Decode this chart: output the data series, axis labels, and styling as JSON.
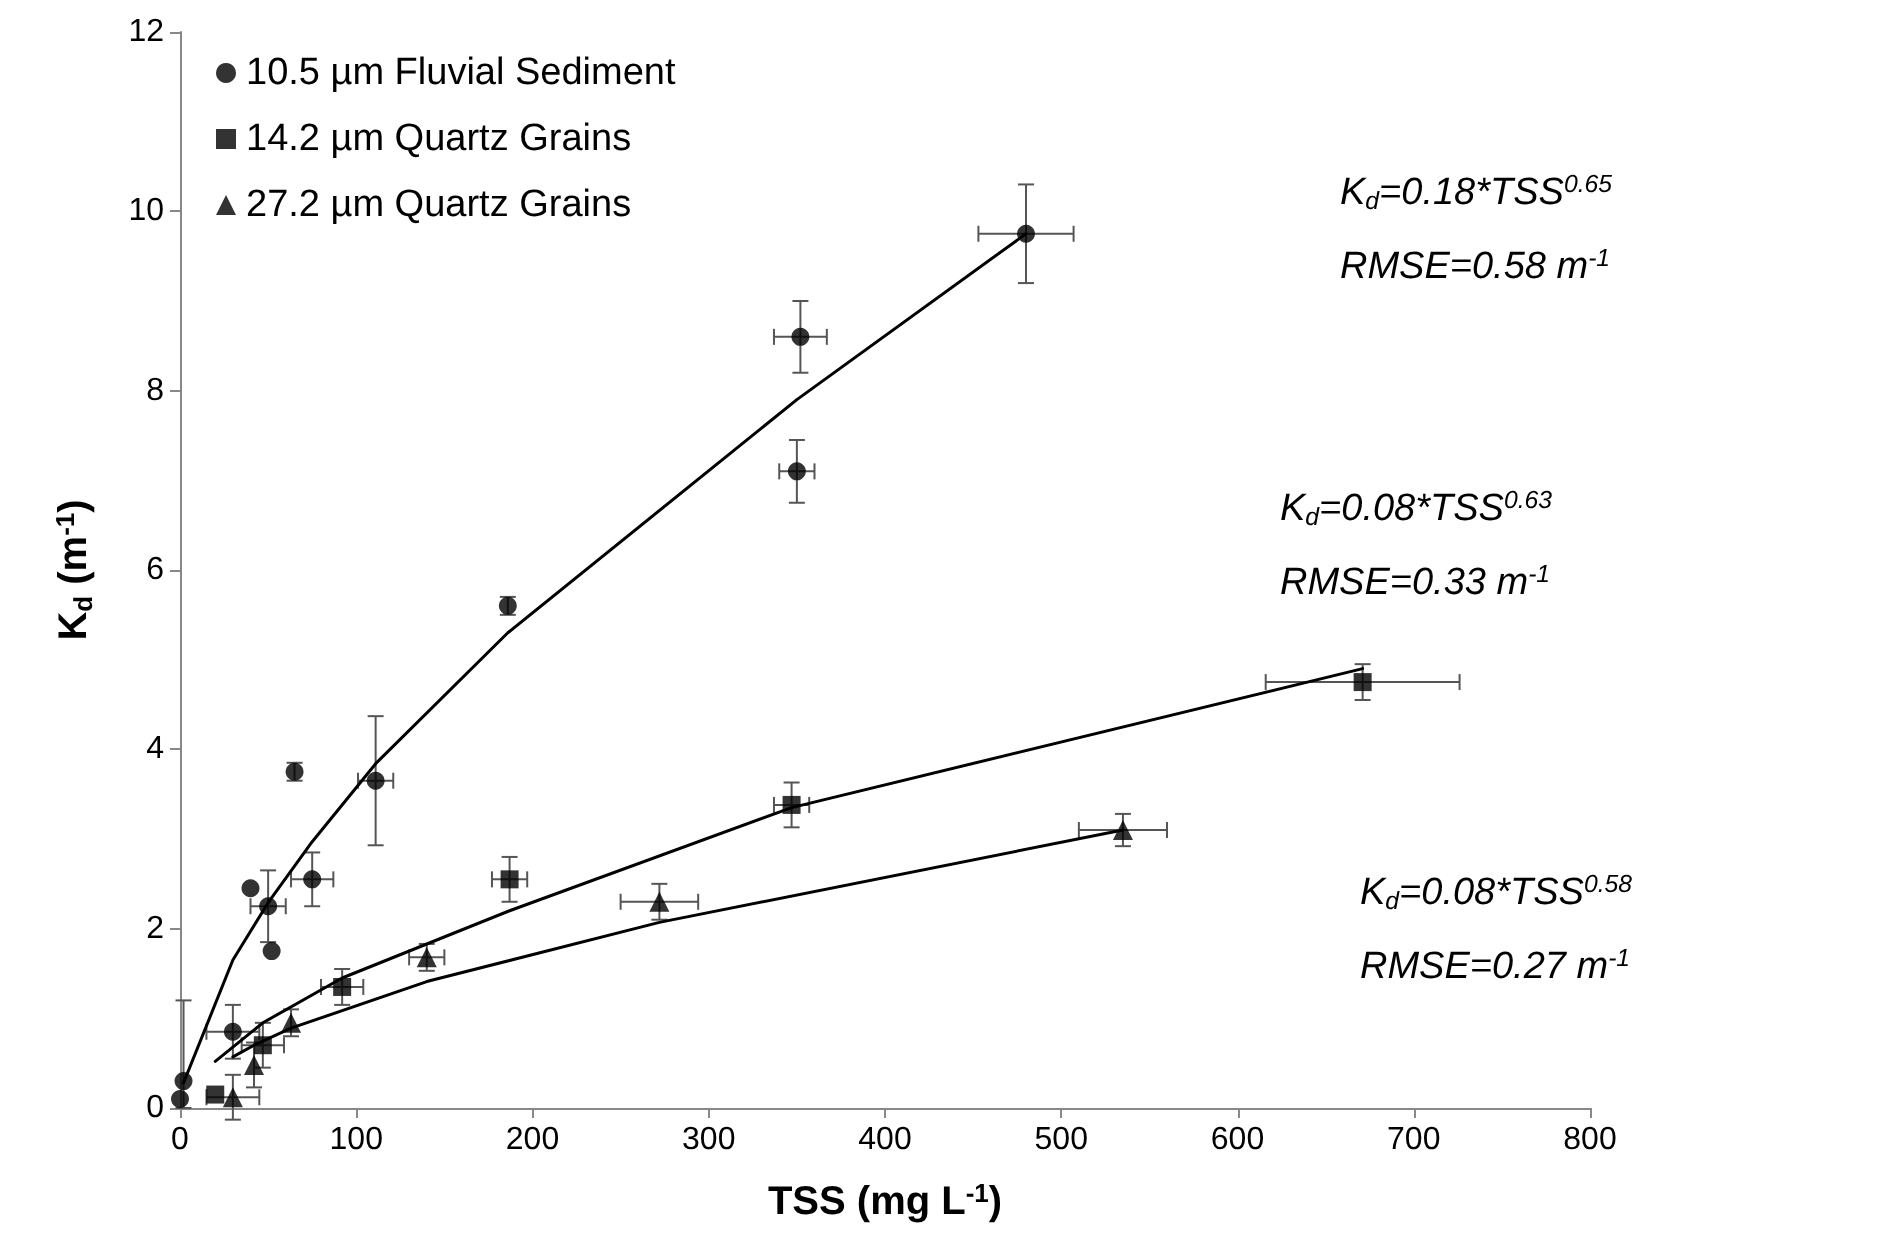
{
  "chart_data": {
    "type": "scatter",
    "xlabel": "TSS (mg L$^{-1}$)",
    "ylabel": "K$_{d}$ (m$^{-1}$)",
    "xlim": [
      0,
      800
    ],
    "xticks": [
      0,
      100,
      200,
      300,
      400,
      500,
      600,
      700,
      800
    ],
    "ylim": [
      0,
      12
    ],
    "yticks": [
      0,
      2,
      4,
      6,
      8,
      10,
      12
    ],
    "grid": false,
    "legend": "top left",
    "series": [
      {
        "name": "10.5 µm Fluvial Sediment",
        "color": "#000000",
        "marker": "circle",
        "x": [
          0,
          2,
          30,
          40,
          50,
          52,
          65,
          75,
          111,
          186,
          350,
          352,
          480
        ],
        "values": [
          0.1,
          0.3,
          0.85,
          2.45,
          2.25,
          1.75,
          3.75,
          2.55,
          3.65,
          5.6,
          7.1,
          8.6,
          9.75
        ],
        "errors": [
          null,
          [
            0,
            1.2
          ],
          0.3,
          null,
          0.4,
          null,
          0.1,
          0.3,
          0.72,
          0.1,
          0.35,
          0.4,
          0.55
        ],
        "xerrors": [
          null,
          null,
          15,
          null,
          10,
          null,
          null,
          12,
          10,
          null,
          10,
          15,
          27
        ]
      },
      {
        "name": "14.2 µm Quartz Grains",
        "color": "#000000",
        "marker": "square",
        "x": [
          20,
          47,
          92,
          187,
          347,
          671
        ],
        "values": [
          0.15,
          0.7,
          1.35,
          2.55,
          3.38,
          4.75
        ],
        "errors": [
          null,
          0.25,
          0.2,
          0.25,
          0.25,
          0.2
        ],
        "xerrors": [
          null,
          12,
          12,
          10,
          10,
          55
        ]
      },
      {
        "name": "27.2 µm Quartz Grains",
        "color": "#000000",
        "marker": "triangle",
        "x": [
          30,
          42,
          63,
          140,
          272,
          535
        ],
        "values": [
          0.12,
          0.48,
          0.95,
          1.68,
          2.3,
          3.1
        ],
        "errors": [
          0.25,
          0.25,
          0.15,
          0.15,
          0.2,
          0.18
        ],
        "xerrors": [
          15,
          null,
          null,
          10,
          22,
          25
        ]
      },
      {
        "type": "line",
        "color": "#000000",
        "marker": "none",
        "x": [
          2,
          30,
          50,
          75,
          111,
          186,
          350,
          480
        ],
        "values": [
          0.28,
          1.65,
          2.29,
          2.97,
          3.84,
          5.3,
          7.9,
          9.75
        ]
      },
      {
        "type": "line",
        "color": "#000000",
        "marker": "none",
        "x": [
          20,
          47,
          92,
          187,
          347,
          671
        ],
        "values": [
          0.52,
          0.95,
          1.45,
          2.2,
          3.35,
          4.9
        ]
      },
      {
        "type": "line",
        "color": "#000000",
        "marker": "none",
        "x": [
          30,
          42,
          63,
          140,
          272,
          535
        ],
        "values": [
          0.57,
          0.7,
          0.89,
          1.41,
          2.07,
          3.1
        ]
      }
    ],
    "annotations": [
      "K$_{d}$=0.18*TSS$^{0.65}$",
      "RMSE=0.58 m$^{-1}$",
      "K$_{d}$=0.08*TSS$^{0.63}$",
      "RMSE=0.33 m$^{-1}$",
      "K$_{d}$=0.08*TSS$^{0.58}$",
      "RMSE=0.27 m$^{-1}$"
    ]
  }
}
